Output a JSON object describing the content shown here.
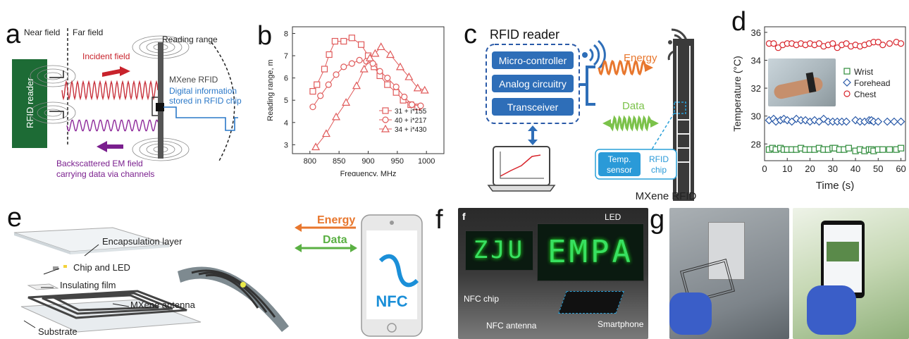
{
  "panels": {
    "a": {
      "label": "a",
      "near_field": "Near field",
      "far_field": "Far field",
      "reading_range": "Reading range",
      "incident_field": "Incident field",
      "mxene_rfid": "MXene RFID",
      "digital_info_1": "Digital information",
      "digital_info_2": "stored in RFID chip",
      "rfid_reader": "RFID reader",
      "backscatter_1": "Backscattered EM field",
      "backscatter_2": "carrying data via channels"
    },
    "b": {
      "label": "b"
    },
    "c": {
      "label": "c",
      "rfid_reader": "RFID reader",
      "micro_controller": "Micro-controller",
      "analog_circuitry": "Analog circuitry",
      "transceiver": "Transceiver",
      "energy": "Energy",
      "data": "Data",
      "temp_sensor_1": "Temp.",
      "temp_sensor_2": "sensor",
      "rfid_chip_1": "RFID",
      "rfid_chip_2": "chip",
      "mxene_rfid": "MXene RFID"
    },
    "d": {
      "label": "d"
    },
    "e": {
      "label": "e",
      "encapsulation": "Encapsulation layer",
      "chip_led": "Chip and LED",
      "insulating": "Insulating film",
      "mxene_antenna": "MXene antenna",
      "substrate": "Substrate",
      "energy": "Energy",
      "data": "Data",
      "nfc": "NFC"
    },
    "f": {
      "label": "f",
      "inset_label": "f",
      "led": "LED",
      "nfc_chip": "NFC chip",
      "nfc_antenna": "NFC antenna",
      "smartphone": "Smartphone",
      "sign_left": "ZJU",
      "sign_right": "EMPA"
    },
    "g": {
      "label": "g"
    }
  },
  "chart_data": [
    {
      "type": "line",
      "panel": "b",
      "xlabel": "Frequency, MHz",
      "ylabel": "Reading range, m",
      "xlim": [
        770,
        1030
      ],
      "ylim": [
        2.6,
        8.3
      ],
      "xticks": [
        800,
        850,
        900,
        950,
        1000
      ],
      "yticks": [
        3,
        4,
        5,
        6,
        7,
        8
      ],
      "legend_position": "bottom-right",
      "color": "#e05a5a",
      "series": [
        {
          "name": "31 + i*155",
          "marker": "square",
          "points": [
            [
              805,
              5.4
            ],
            [
              812,
              5.7
            ],
            [
              825,
              6.4
            ],
            [
              833,
              7.05
            ],
            [
              843,
              7.65
            ],
            [
              858,
              7.65
            ],
            [
              872,
              7.8
            ],
            [
              888,
              7.5
            ],
            [
              900,
              7.0
            ],
            [
              910,
              6.5
            ],
            [
              920,
              6.1
            ],
            [
              933,
              5.7
            ],
            [
              948,
              5.35
            ],
            [
              960,
              5.0
            ],
            [
              973,
              4.8
            ],
            [
              985,
              4.7
            ]
          ]
        },
        {
          "name": "40 + i*217",
          "marker": "circle",
          "points": [
            [
              805,
              4.7
            ],
            [
              818,
              5.2
            ],
            [
              832,
              5.7
            ],
            [
              845,
              6.15
            ],
            [
              858,
              6.5
            ],
            [
              872,
              6.65
            ],
            [
              885,
              6.8
            ],
            [
              897,
              6.75
            ],
            [
              908,
              6.65
            ],
            [
              920,
              6.3
            ],
            [
              933,
              6.0
            ],
            [
              948,
              5.6
            ],
            [
              962,
              5.15
            ],
            [
              975,
              4.8
            ],
            [
              990,
              4.75
            ]
          ]
        },
        {
          "name": "34 + i*430",
          "marker": "triangle",
          "points": [
            [
              810,
              2.9
            ],
            [
              828,
              3.5
            ],
            [
              845,
              4.25
            ],
            [
              862,
              4.9
            ],
            [
              880,
              5.65
            ],
            [
              893,
              6.4
            ],
            [
              903,
              6.9
            ],
            [
              912,
              7.1
            ],
            [
              922,
              7.4
            ],
            [
              938,
              7.05
            ],
            [
              955,
              6.5
            ],
            [
              970,
              6.05
            ],
            [
              985,
              5.55
            ],
            [
              997,
              5.45
            ]
          ]
        }
      ]
    },
    {
      "type": "scatter",
      "panel": "d",
      "xlabel": "Time (s)",
      "ylabel": "Temperature (°C)",
      "xlim": [
        0,
        62
      ],
      "ylim": [
        26.8,
        36.4
      ],
      "xticks": [
        0,
        10,
        20,
        30,
        40,
        50,
        60
      ],
      "yticks": [
        28,
        30,
        32,
        34,
        36
      ],
      "legend_position": "center-right",
      "series": [
        {
          "name": "Wrist",
          "marker": "square",
          "color": "#2e8b3a",
          "x": [
            2,
            3.5,
            5,
            7,
            8.5,
            10,
            12,
            14,
            16,
            18,
            20,
            22,
            24,
            26,
            28,
            30,
            31,
            33,
            35,
            37,
            40,
            42,
            44,
            46,
            47,
            48,
            50,
            52,
            55,
            58,
            60
          ],
          "y": [
            27.6,
            27.7,
            27.6,
            27.7,
            27.6,
            27.6,
            27.6,
            27.6,
            27.7,
            27.6,
            27.6,
            27.6,
            27.7,
            27.6,
            27.6,
            27.7,
            27.7,
            27.6,
            27.6,
            27.7,
            27.5,
            27.6,
            27.5,
            27.6,
            27.6,
            27.5,
            27.6,
            27.6,
            27.6,
            27.6,
            27.7
          ]
        },
        {
          "name": "Forehead",
          "marker": "diamond",
          "color": "#2a5aa8",
          "x": [
            2,
            4,
            5,
            7,
            8.5,
            10,
            12,
            14,
            16,
            18,
            20,
            22,
            24,
            26,
            28,
            30,
            32,
            34,
            36,
            40,
            42,
            44,
            46,
            47,
            48,
            50,
            54,
            57,
            60
          ],
          "y": [
            29.7,
            29.8,
            29.6,
            29.7,
            29.8,
            29.7,
            29.6,
            29.8,
            29.7,
            29.7,
            29.6,
            29.7,
            29.6,
            29.8,
            29.6,
            29.6,
            29.6,
            29.6,
            29.6,
            29.7,
            29.6,
            29.6,
            29.7,
            29.7,
            29.6,
            29.6,
            29.6,
            29.6,
            29.6
          ]
        },
        {
          "name": "Chest",
          "marker": "circle",
          "color": "#d8242b",
          "x": [
            2,
            4,
            6,
            8,
            10,
            12,
            14,
            16,
            18,
            20,
            22,
            24,
            26,
            28,
            30,
            32,
            34,
            36,
            38,
            40,
            42,
            44,
            46,
            48,
            50,
            52,
            55,
            58,
            60
          ],
          "y": [
            35.2,
            35.2,
            34.9,
            35.1,
            35.2,
            35.2,
            35.1,
            35.2,
            35.1,
            35.2,
            35.1,
            35.2,
            35.0,
            35.1,
            35.2,
            34.9,
            35.1,
            35.2,
            35.0,
            35.1,
            35.0,
            35.1,
            35.2,
            35.3,
            35.3,
            35.1,
            35.2,
            35.3,
            35.2
          ]
        }
      ]
    }
  ]
}
